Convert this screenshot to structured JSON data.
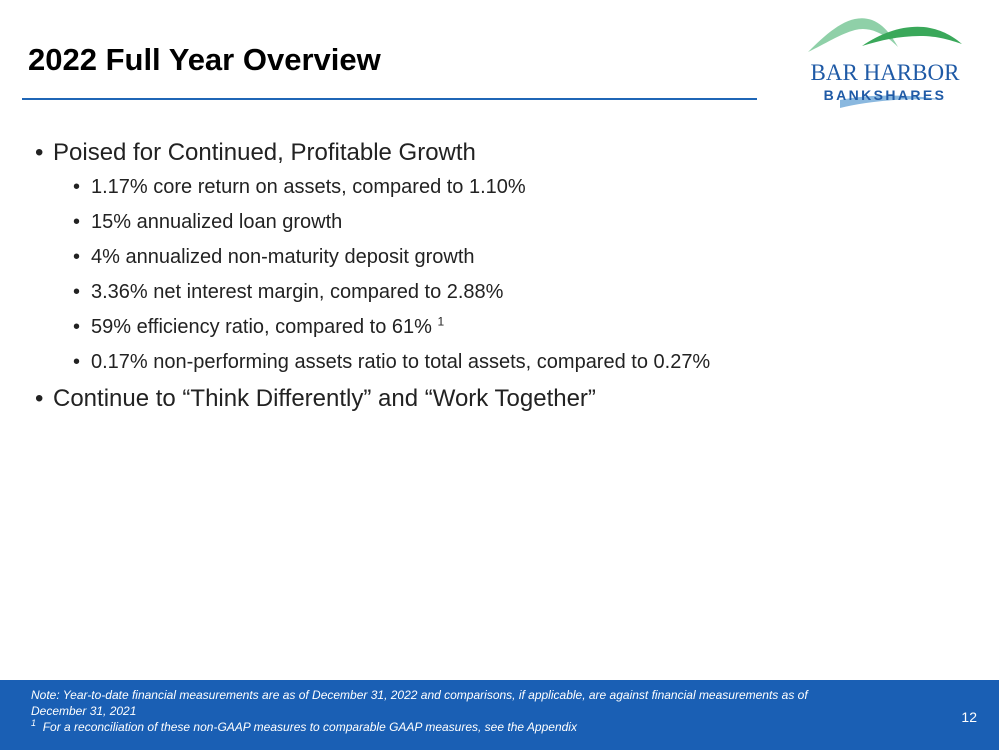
{
  "slide": {
    "title": "2022 Full Year Overview",
    "page_number": "12"
  },
  "logo": {
    "line1": "BAR HARBOR",
    "line2": "BANKSHARES",
    "colors": {
      "hill_light": "#8fd0a8",
      "hill_dark": "#3aa85a",
      "water": "#8ab8df",
      "text": "#1f5aa6"
    }
  },
  "bullets": [
    {
      "text": "Poised for Continued, Profitable Growth",
      "children": [
        {
          "text": "1.17% core return on assets, compared to 1.10%"
        },
        {
          "text": "15% annualized loan growth"
        },
        {
          "text": "4% annualized non-maturity deposit growth"
        },
        {
          "text": "3.36% net interest margin, compared to 2.88%"
        },
        {
          "text": "59% efficiency ratio, compared to 61%",
          "footnote": "1"
        },
        {
          "text": "0.17% non-performing assets ratio to total assets, compared to 0.27%"
        }
      ]
    },
    {
      "text": "Continue to “Think Differently” and “Work Together”",
      "children": []
    }
  ],
  "footer": {
    "note": "Note:  Year-to-date financial measurements are as of December 31, 2022 and comparisons, if applicable, are against financial measurements as of December 31, 2021",
    "footnote_mark": "1",
    "footnote_text": "For a reconciliation of these non-GAAP measures to comparable GAAP measures, see the Appendix",
    "background": "#1a5fb4"
  },
  "colors": {
    "title_rule": "#1f66b6"
  }
}
